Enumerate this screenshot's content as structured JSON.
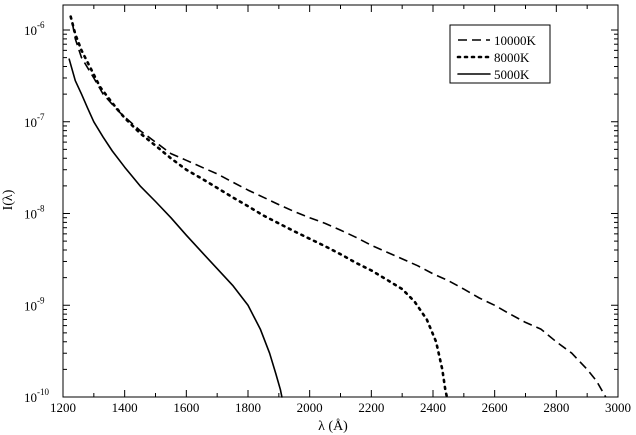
{
  "chart_data": {
    "type": "line",
    "title": "",
    "xlabel": "λ (Å)",
    "ylabel": "I(λ)",
    "xlim": [
      1200,
      3000
    ],
    "ylim": [
      1e-10,
      2e-06
    ],
    "yscale": "log",
    "x_ticks": [
      1200,
      1400,
      1600,
      1800,
      2000,
      2200,
      2400,
      2600,
      2800,
      3000
    ],
    "x_tick_labels": [
      "1200",
      "1400",
      "1600",
      "1800",
      "2000",
      "2200",
      "2400",
      "2600",
      "2800",
      "3000"
    ],
    "y_ticks": [
      {
        "value": 1e-10,
        "base": "10",
        "exp": "-10"
      },
      {
        "value": 1e-09,
        "base": "10",
        "exp": "-9"
      },
      {
        "value": 1e-08,
        "base": "10",
        "exp": "-8"
      },
      {
        "value": 1e-07,
        "base": "10",
        "exp": "-7"
      },
      {
        "value": 1e-06,
        "base": "10",
        "exp": "-6"
      }
    ],
    "grid": false,
    "legend_position": "top-right",
    "series": [
      {
        "name": "10000K",
        "style": "dashed",
        "points": [
          [
            1230,
            1.2e-06
          ],
          [
            1240,
            8e-07
          ],
          [
            1260,
            5e-07
          ],
          [
            1300,
            3e-07
          ],
          [
            1330,
            2e-07
          ],
          [
            1380,
            1.3e-07
          ],
          [
            1450,
            8e-08
          ],
          [
            1500,
            6e-08
          ],
          [
            1550,
            4.5e-08
          ],
          [
            1600,
            3.8e-08
          ],
          [
            1650,
            3.2e-08
          ],
          [
            1700,
            2.7e-08
          ],
          [
            1750,
            2.2e-08
          ],
          [
            1800,
            1.8e-08
          ],
          [
            1850,
            1.5e-08
          ],
          [
            1900,
            1.25e-08
          ],
          [
            1950,
            1.05e-08
          ],
          [
            2000,
            9e-09
          ],
          [
            2050,
            7.8e-09
          ],
          [
            2100,
            6.6e-09
          ],
          [
            2150,
            5.5e-09
          ],
          [
            2200,
            4.5e-09
          ],
          [
            2250,
            3.8e-09
          ],
          [
            2300,
            3.2e-09
          ],
          [
            2350,
            2.7e-09
          ],
          [
            2400,
            2.2e-09
          ],
          [
            2450,
            1.85e-09
          ],
          [
            2500,
            1.5e-09
          ],
          [
            2550,
            1.2e-09
          ],
          [
            2600,
            1e-09
          ],
          [
            2650,
            8e-10
          ],
          [
            2700,
            6.5e-10
          ],
          [
            2750,
            5.5e-10
          ],
          [
            2800,
            4e-10
          ],
          [
            2850,
            3e-10
          ],
          [
            2900,
            2e-10
          ],
          [
            2930,
            1.5e-10
          ],
          [
            2960,
            1e-10
          ]
        ]
      },
      {
        "name": "8000K",
        "style": "dotted",
        "points": [
          [
            1225,
            1.4e-06
          ],
          [
            1240,
            9e-07
          ],
          [
            1260,
            6e-07
          ],
          [
            1290,
            3.8e-07
          ],
          [
            1320,
            2.4e-07
          ],
          [
            1360,
            1.6e-07
          ],
          [
            1400,
            1.1e-07
          ],
          [
            1450,
            7.5e-08
          ],
          [
            1500,
            5.5e-08
          ],
          [
            1550,
            4e-08
          ],
          [
            1600,
            3e-08
          ],
          [
            1650,
            2.4e-08
          ],
          [
            1700,
            1.9e-08
          ],
          [
            1750,
            1.5e-08
          ],
          [
            1800,
            1.2e-08
          ],
          [
            1850,
            9.5e-09
          ],
          [
            1900,
            7.8e-09
          ],
          [
            1950,
            6.4e-09
          ],
          [
            2000,
            5.3e-09
          ],
          [
            2050,
            4.4e-09
          ],
          [
            2100,
            3.6e-09
          ],
          [
            2150,
            2.9e-09
          ],
          [
            2200,
            2.4e-09
          ],
          [
            2250,
            1.9e-09
          ],
          [
            2300,
            1.5e-09
          ],
          [
            2340,
            1.1e-09
          ],
          [
            2380,
            7e-10
          ],
          [
            2410,
            4e-10
          ],
          [
            2430,
            2e-10
          ],
          [
            2440,
            1.2e-10
          ],
          [
            2445,
            1e-10
          ]
        ]
      },
      {
        "name": "5000K",
        "style": "solid",
        "points": [
          [
            1220,
            4.8e-07
          ],
          [
            1240,
            2.8e-07
          ],
          [
            1260,
            2e-07
          ],
          [
            1280,
            1.4e-07
          ],
          [
            1300,
            1e-07
          ],
          [
            1330,
            6.8e-08
          ],
          [
            1360,
            4.8e-08
          ],
          [
            1400,
            3.2e-08
          ],
          [
            1450,
            2e-08
          ],
          [
            1500,
            1.35e-08
          ],
          [
            1550,
            9e-09
          ],
          [
            1600,
            5.8e-09
          ],
          [
            1650,
            3.8e-09
          ],
          [
            1700,
            2.5e-09
          ],
          [
            1750,
            1.65e-09
          ],
          [
            1800,
            1e-09
          ],
          [
            1840,
            5.5e-10
          ],
          [
            1870,
            3e-10
          ],
          [
            1890,
            1.8e-10
          ],
          [
            1905,
            1.2e-10
          ],
          [
            1910,
            1e-10
          ]
        ]
      }
    ]
  }
}
